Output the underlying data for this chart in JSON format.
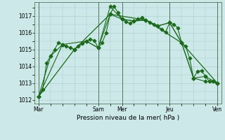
{
  "background_color": "#cce8e8",
  "plot_bg_color": "#cce8e8",
  "grid_color": "#aacccc",
  "line_color": "#1a6b1a",
  "xlabel": "Pression niveau de la mer( hPa )",
  "ylim": [
    1011.8,
    1017.8
  ],
  "yticks": [
    1012,
    1013,
    1014,
    1015,
    1016,
    1017
  ],
  "xtick_labels": [
    "Mar",
    "",
    "Sam",
    "Mer",
    "",
    "Jeu",
    "",
    "Ven"
  ],
  "xtick_positions": [
    0,
    9,
    15,
    21,
    27,
    33,
    39,
    45
  ],
  "vline_positions": [
    0,
    15,
    21,
    33,
    45
  ],
  "total_x": 45,
  "series": [
    {
      "x": [
        0,
        1,
        2,
        3,
        4,
        5,
        6,
        7,
        8,
        9,
        10,
        11,
        12,
        13,
        14,
        15,
        16,
        17,
        18,
        19,
        20,
        21,
        22,
        23,
        24,
        25,
        26,
        27,
        28,
        29,
        30,
        31,
        32,
        33,
        34,
        35,
        36,
        37,
        38,
        39,
        40,
        41,
        42,
        43,
        44,
        45
      ],
      "y": [
        1012.2,
        1012.6,
        1014.2,
        1014.6,
        1015.0,
        1015.4,
        1015.3,
        1015.2,
        1015.1,
        1015.0,
        1015.2,
        1015.35,
        1015.5,
        1015.6,
        1015.55,
        1015.1,
        1015.4,
        1016.0,
        1017.1,
        1017.55,
        1017.2,
        1016.8,
        1016.65,
        1016.55,
        1016.7,
        1016.8,
        1016.9,
        1016.75,
        1016.6,
        1016.5,
        1016.4,
        1016.2,
        1016.05,
        1016.6,
        1016.5,
        1016.3,
        1015.4,
        1015.2,
        1014.5,
        1013.3,
        1013.7,
        1013.75,
        1013.4,
        1013.1,
        1013.1,
        1013.0
      ],
      "marker": "D",
      "ms": 2.5,
      "lw": 0.8
    },
    {
      "x": [
        0,
        3,
        6,
        9,
        12,
        15,
        18,
        21,
        24,
        27,
        30,
        33,
        36,
        39,
        42,
        45
      ],
      "y": [
        1012.2,
        1014.6,
        1015.3,
        1015.0,
        1015.5,
        1015.1,
        1017.1,
        1016.8,
        1016.7,
        1016.75,
        1016.4,
        1016.6,
        1015.4,
        1013.3,
        1013.4,
        1013.0
      ],
      "marker": "D",
      "ms": 2.5,
      "lw": 0.8
    },
    {
      "x": [
        0,
        6,
        12,
        15,
        18,
        21,
        24,
        27,
        30,
        33,
        36,
        39,
        42,
        45
      ],
      "y": [
        1012.2,
        1015.3,
        1015.5,
        1015.1,
        1017.55,
        1016.8,
        1016.7,
        1016.75,
        1016.4,
        1016.6,
        1015.4,
        1013.3,
        1013.1,
        1013.0
      ],
      "marker": "D",
      "ms": 2.5,
      "lw": 0.8
    },
    {
      "x": [
        0,
        9,
        18,
        27,
        36,
        45
      ],
      "y": [
        1012.2,
        1015.0,
        1017.1,
        1016.75,
        1015.4,
        1013.0
      ],
      "marker": "D",
      "ms": 2.5,
      "lw": 0.9
    }
  ]
}
